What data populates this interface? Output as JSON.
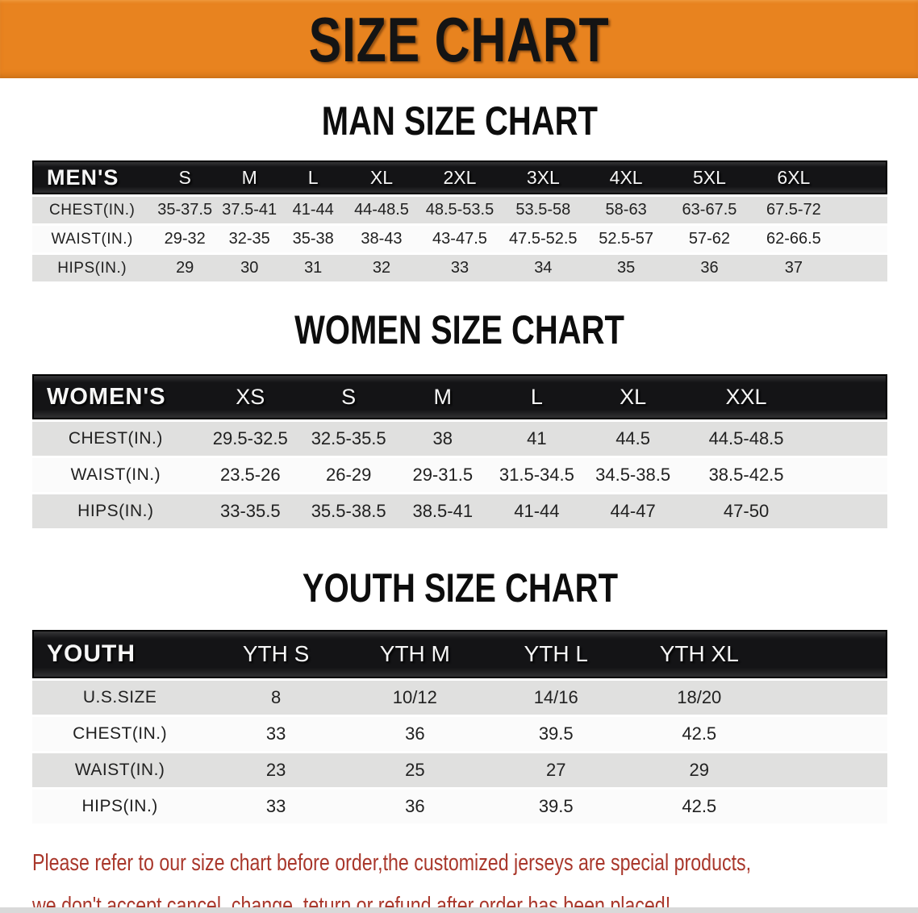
{
  "banner": {
    "title": "SIZE CHART"
  },
  "colors": {
    "banner_bg": "#E8831F",
    "header_bar": "#141416",
    "row_stripe": "#E0E0DF",
    "row_alt": "#FBFBFB",
    "disclaimer_text": "#A9372B"
  },
  "sections": [
    {
      "heading": "MAN SIZE CHART",
      "table": {
        "name": "mens-size-table",
        "label": "MEN'S",
        "columns": [
          "S",
          "M",
          "L",
          "XL",
          "2XL",
          "3XL",
          "4XL",
          "5XL",
          "6XL"
        ],
        "rows": [
          {
            "label": "CHEST(IN.)",
            "values": [
              "35-37.5",
              "37.5-41",
              "41-44",
              "44-48.5",
              "48.5-53.5",
              "53.5-58",
              "58-63",
              "63-67.5",
              "67.5-72"
            ]
          },
          {
            "label": "WAIST(IN.)",
            "values": [
              "29-32",
              "32-35",
              "35-38",
              "38-43",
              "43-47.5",
              "47.5-52.5",
              "52.5-57",
              "57-62",
              "62-66.5"
            ]
          },
          {
            "label": "HIPS(IN.)",
            "values": [
              "29",
              "30",
              "31",
              "32",
              "33",
              "34",
              "35",
              "36",
              "37"
            ]
          }
        ]
      }
    },
    {
      "heading": "WOMEN SIZE CHART",
      "table": {
        "name": "womens-size-table",
        "label": "WOMEN'S",
        "columns": [
          "XS",
          "S",
          "M",
          "L",
          "XL",
          "XXL"
        ],
        "rows": [
          {
            "label": "CHEST(IN.)",
            "values": [
              "29.5-32.5",
              "32.5-35.5",
              "38",
              "41",
              "44.5",
              "44.5-48.5"
            ]
          },
          {
            "label": "WAIST(IN.)",
            "values": [
              "23.5-26",
              "26-29",
              "29-31.5",
              "31.5-34.5",
              "34.5-38.5",
              "38.5-42.5"
            ]
          },
          {
            "label": "HIPS(IN.)",
            "values": [
              "33-35.5",
              "35.5-38.5",
              "38.5-41",
              "41-44",
              "44-47",
              "47-50"
            ]
          }
        ]
      }
    },
    {
      "heading": "YOUTH SIZE CHART",
      "table": {
        "name": "youth-size-table",
        "label": "YOUTH",
        "columns": [
          "YTH S",
          "YTH M",
          "YTH L",
          "YTH XL"
        ],
        "rows": [
          {
            "label": "U.S.SIZE",
            "values": [
              "8",
              "10/12",
              "14/16",
              "18/20"
            ]
          },
          {
            "label": "CHEST(IN.)",
            "values": [
              "33",
              "36",
              "39.5",
              "42.5"
            ]
          },
          {
            "label": "WAIST(IN.)",
            "values": [
              "23",
              "25",
              "27",
              "29"
            ]
          },
          {
            "label": "HIPS(IN.)",
            "values": [
              "33",
              "36",
              "39.5",
              "42.5"
            ]
          }
        ]
      }
    }
  ],
  "disclaimer": {
    "line1": "Please refer to our size chart before order,the customized jerseys are special products,",
    "line2": "we don't accept cancel, change, teturn or refund after order has been placed!"
  }
}
